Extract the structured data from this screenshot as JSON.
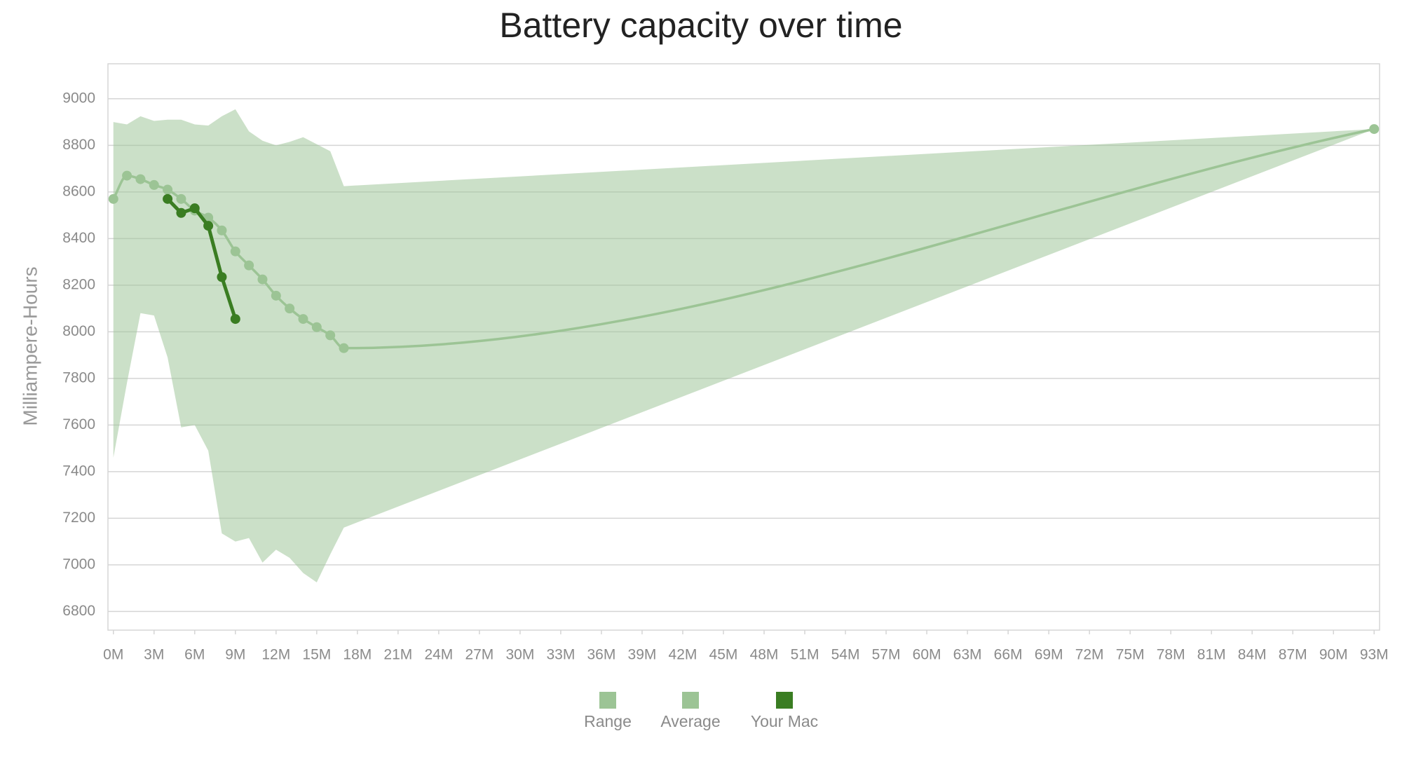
{
  "chart_data": {
    "type": "line",
    "title": "Battery capacity over time",
    "y_label": "Milliampere-Hours",
    "xlim": [
      -0.4,
      93.4
    ],
    "ylim": [
      6720,
      9150
    ],
    "xticks": [
      {
        "value": 0,
        "label": "0M"
      },
      {
        "value": 3,
        "label": "3M"
      },
      {
        "value": 6,
        "label": "6M"
      },
      {
        "value": 9,
        "label": "9M"
      },
      {
        "value": 12,
        "label": "12M"
      },
      {
        "value": 15,
        "label": "15M"
      },
      {
        "value": 18,
        "label": "18M"
      },
      {
        "value": 21,
        "label": "21M"
      },
      {
        "value": 24,
        "label": "24M"
      },
      {
        "value": 27,
        "label": "27M"
      },
      {
        "value": 30,
        "label": "30M"
      },
      {
        "value": 33,
        "label": "33M"
      },
      {
        "value": 36,
        "label": "36M"
      },
      {
        "value": 39,
        "label": "39M"
      },
      {
        "value": 42,
        "label": "42M"
      },
      {
        "value": 45,
        "label": "45M"
      },
      {
        "value": 48,
        "label": "48M"
      },
      {
        "value": 51,
        "label": "51M"
      },
      {
        "value": 54,
        "label": "54M"
      },
      {
        "value": 57,
        "label": "57M"
      },
      {
        "value": 60,
        "label": "60M"
      },
      {
        "value": 63,
        "label": "63M"
      },
      {
        "value": 66,
        "label": "66M"
      },
      {
        "value": 69,
        "label": "69M"
      },
      {
        "value": 72,
        "label": "72M"
      },
      {
        "value": 75,
        "label": "75M"
      },
      {
        "value": 78,
        "label": "78M"
      },
      {
        "value": 81,
        "label": "81M"
      },
      {
        "value": 84,
        "label": "84M"
      },
      {
        "value": 87,
        "label": "87M"
      },
      {
        "value": 90,
        "label": "90M"
      },
      {
        "value": 93,
        "label": "93M"
      }
    ],
    "yticks": [
      6800,
      7000,
      7200,
      7400,
      7600,
      7800,
      8000,
      8200,
      8400,
      8600,
      8800,
      9000
    ],
    "grid": true,
    "legend": "bottom",
    "series": [
      {
        "name": "Range",
        "color": "#9cc495",
        "kind": "range",
        "x": [
          0,
          1,
          2,
          3,
          4,
          5,
          6,
          7,
          8,
          9,
          10,
          11,
          12,
          13,
          14,
          15,
          16,
          17,
          93
        ],
        "high": [
          8900,
          8890,
          8925,
          8905,
          8910,
          8910,
          8890,
          8885,
          8925,
          8955,
          8860,
          8820,
          8800,
          8815,
          8835,
          8805,
          8775,
          8625,
          8870
        ],
        "low": [
          7460,
          7780,
          8080,
          8070,
          7890,
          7590,
          7600,
          7490,
          7135,
          7100,
          7115,
          7010,
          7065,
          7030,
          6965,
          6925,
          7045,
          7160,
          8870
        ]
      },
      {
        "name": "Average",
        "color": "#9cc495",
        "kind": "smooth",
        "x": [
          0,
          1,
          2,
          3,
          4,
          5,
          6,
          7,
          8,
          9,
          10,
          11,
          12,
          13,
          14,
          15,
          16,
          17,
          93
        ],
        "values": [
          8570,
          8670,
          8655,
          8630,
          8610,
          8570,
          8520,
          8490,
          8435,
          8345,
          8285,
          8225,
          8155,
          8100,
          8055,
          8020,
          7985,
          7930,
          8870
        ]
      },
      {
        "name": "Your Mac",
        "color": "#3a7d22",
        "kind": "line",
        "x": [
          4,
          5,
          6,
          7,
          8,
          9
        ],
        "values": [
          8570,
          8510,
          8530,
          8455,
          8235,
          8055
        ]
      }
    ]
  }
}
